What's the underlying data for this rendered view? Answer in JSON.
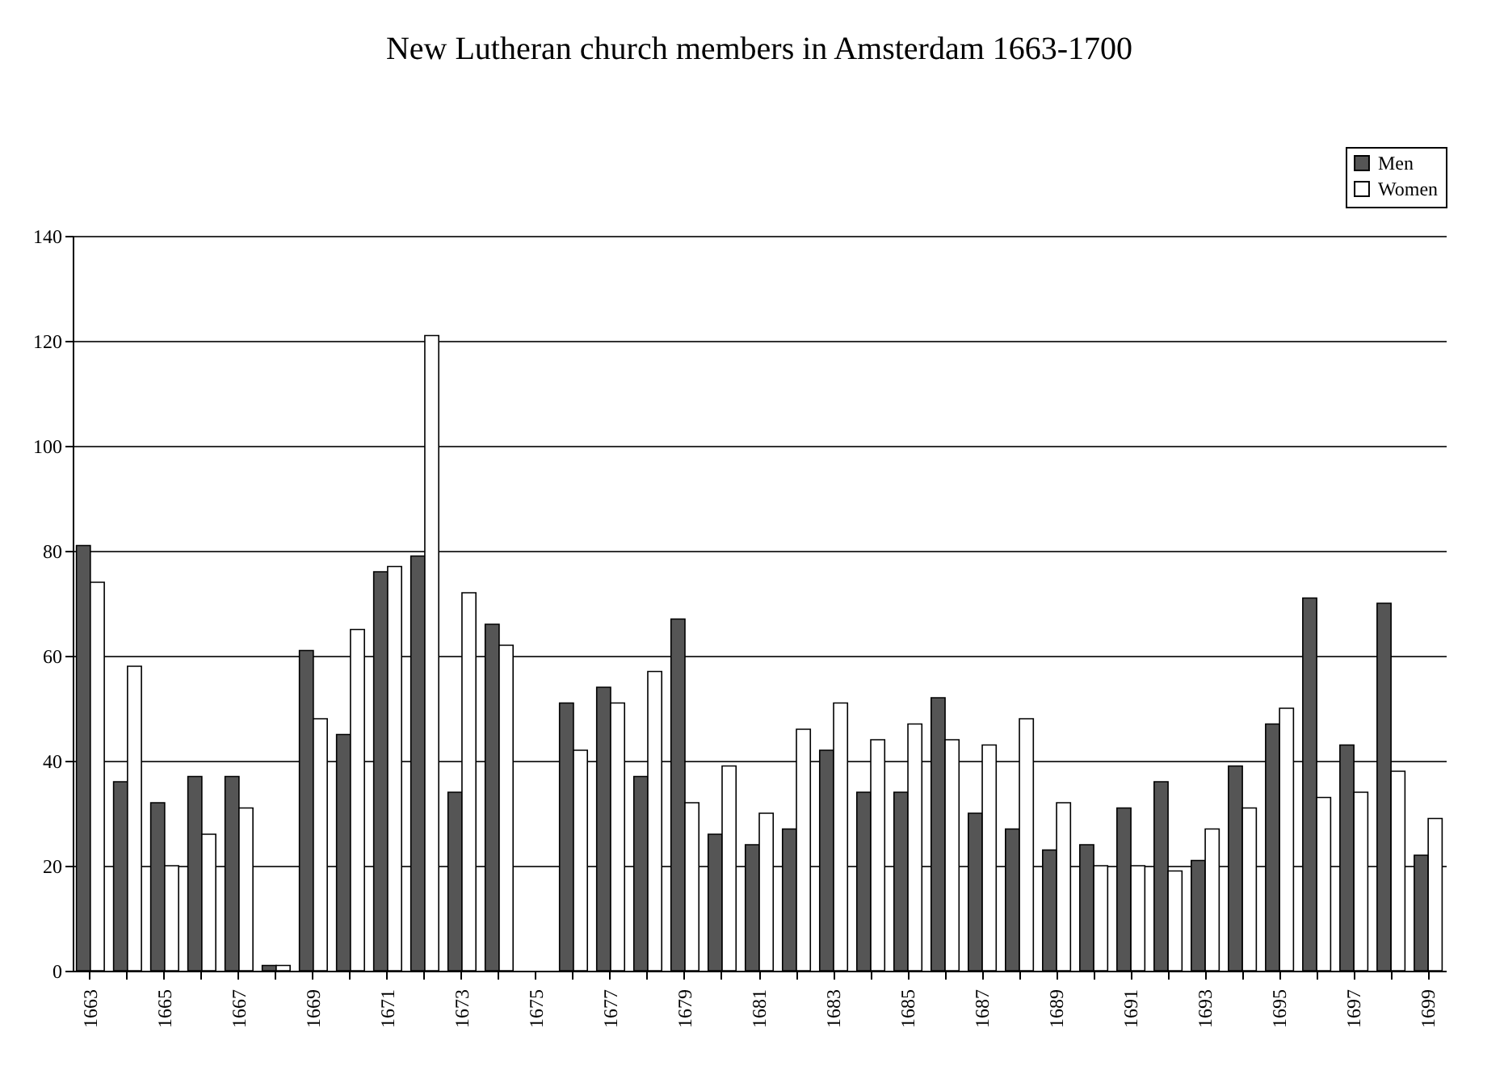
{
  "chart_data": {
    "type": "bar",
    "title": "New Lutheran church members in Amsterdam 1663-1700",
    "categories": [
      "1663",
      null,
      "1665",
      null,
      "1667",
      null,
      "1669",
      null,
      "1671",
      null,
      "1673",
      null,
      "1675",
      null,
      "1677",
      null,
      "1679",
      null,
      "1681",
      null,
      "1683",
      null,
      "1685",
      null,
      "1687",
      null,
      "1689",
      null,
      "1691",
      null,
      "1693",
      null,
      "1695",
      null,
      "1697",
      null,
      "1699"
    ],
    "series": [
      {
        "name": "Men",
        "color": "#555555",
        "values": [
          81,
          36,
          32,
          37,
          37,
          1,
          61,
          45,
          76,
          79,
          34,
          66,
          null,
          51,
          54,
          37,
          67,
          26,
          24,
          27,
          42,
          34,
          34,
          52,
          30,
          27,
          23,
          24,
          31,
          36,
          21,
          39,
          47,
          71,
          43,
          70,
          22
        ]
      },
      {
        "name": "Women",
        "color": "#ffffff",
        "values": [
          74,
          58,
          20,
          26,
          31,
          1,
          48,
          65,
          77,
          121,
          72,
          62,
          null,
          42,
          51,
          57,
          32,
          39,
          30,
          46,
          51,
          44,
          47,
          44,
          43,
          48,
          32,
          20,
          20,
          19,
          27,
          31,
          50,
          33,
          34,
          38,
          29
        ]
      }
    ],
    "ylim": [
      0,
      140
    ],
    "yticks": [
      0,
      20,
      40,
      60,
      80,
      100,
      120,
      140
    ],
    "grid": "y",
    "legend": "top right"
  }
}
